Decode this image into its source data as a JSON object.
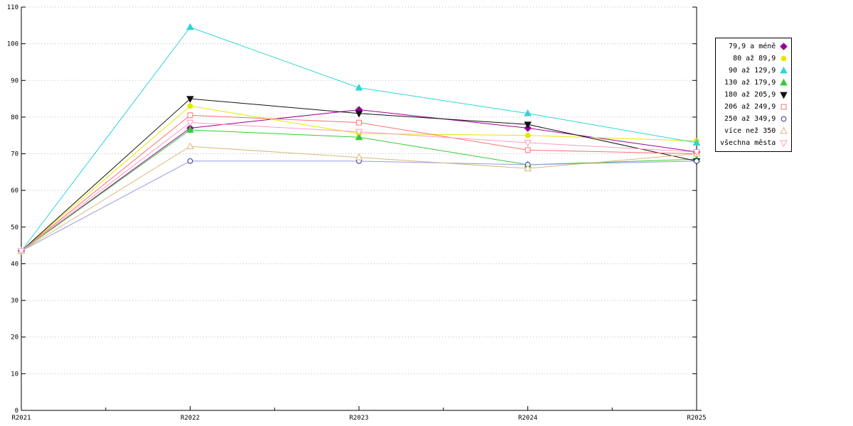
{
  "chart_data": {
    "type": "line",
    "title": "",
    "xlabel": "",
    "ylabel": "",
    "categories": [
      "R2021",
      "R2022",
      "R2023",
      "R2024",
      "R2025"
    ],
    "ylim": [
      0,
      110
    ],
    "ytick_step": 10,
    "grid": "dotted-horizontal",
    "legend_position": "right",
    "background_color": "#ffffff",
    "grid_color": "#bbbbbb",
    "axis_color": "#000000",
    "series": [
      {
        "name": "79,9 a méně",
        "color": "#990099",
        "marker": "diamond",
        "fill": true,
        "values": [
          43.5,
          77,
          82,
          77,
          70.5
        ]
      },
      {
        "name": "80 až 89,9",
        "color": "#e6e600",
        "marker": "circle",
        "fill": true,
        "values": [
          43.5,
          83,
          75.5,
          75,
          73.5
        ]
      },
      {
        "name": "90 až 129,9",
        "color": "#2fd5d5",
        "marker": "triangle-up",
        "fill": true,
        "values": [
          43.5,
          104.5,
          88,
          81,
          73
        ]
      },
      {
        "name": "130 až 179,9",
        "color": "#33cc33",
        "marker": "triangle-up",
        "fill": true,
        "values": [
          43.5,
          76.5,
          74.5,
          67,
          68.5
        ]
      },
      {
        "name": "180 až 205,9",
        "color": "#111111",
        "marker": "triangle-down",
        "fill": true,
        "values": [
          43.5,
          85,
          81,
          78,
          68
        ]
      },
      {
        "name": "206 až 249,9",
        "color": "#ff7070",
        "marker": "square",
        "fill": false,
        "values": [
          43.5,
          80.5,
          78.5,
          71,
          70
        ]
      },
      {
        "name": "250 až 349,9",
        "color": "#9898e8",
        "marker": "circle",
        "fill": false,
        "marker_color": "#333388",
        "values": [
          43.5,
          68,
          68,
          67,
          68
        ]
      },
      {
        "name": "více než 350",
        "color": "#d8b97a",
        "marker": "triangle-up",
        "fill": false,
        "values": [
          43.5,
          72,
          69,
          66,
          70
        ]
      },
      {
        "name": "všechna města",
        "color": "#ff9bc0",
        "marker": "triangle-down",
        "fill": false,
        "values": [
          43.5,
          78.5,
          76,
          73,
          70.5
        ]
      }
    ]
  }
}
